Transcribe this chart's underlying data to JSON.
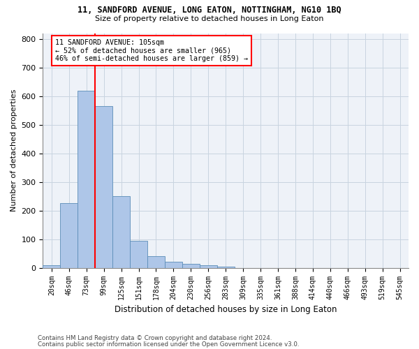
{
  "title_line1": "11, SANDFORD AVENUE, LONG EATON, NOTTINGHAM, NG10 1BQ",
  "title_line2": "Size of property relative to detached houses in Long Eaton",
  "xlabel": "Distribution of detached houses by size in Long Eaton",
  "ylabel": "Number of detached properties",
  "bar_labels": [
    "20sqm",
    "46sqm",
    "73sqm",
    "99sqm",
    "125sqm",
    "151sqm",
    "178sqm",
    "204sqm",
    "230sqm",
    "256sqm",
    "283sqm",
    "309sqm",
    "335sqm",
    "361sqm",
    "388sqm",
    "414sqm",
    "440sqm",
    "466sqm",
    "493sqm",
    "519sqm",
    "545sqm"
  ],
  "bar_values": [
    10,
    225,
    618,
    565,
    250,
    95,
    40,
    20,
    15,
    8,
    5,
    0,
    0,
    0,
    0,
    0,
    0,
    0,
    0,
    0,
    0
  ],
  "bar_color": "#aec6e8",
  "bar_edge_color": "#5b8db8",
  "grid_color": "#c8d4e0",
  "background_color": "#eef2f8",
  "annotation_box_color": "white",
  "annotation_box_edge": "red",
  "annotation_line": "11 SANDFORD AVENUE: 105sqm",
  "annotation_pct1": "← 52% of detached houses are smaller (965)",
  "annotation_pct2": "46% of semi-detached houses are larger (859) →",
  "vline_x_idx": 2.5,
  "vline_color": "red",
  "ylim": [
    0,
    820
  ],
  "yticks": [
    0,
    100,
    200,
    300,
    400,
    500,
    600,
    700,
    800
  ],
  "footer1": "Contains HM Land Registry data © Crown copyright and database right 2024.",
  "footer2": "Contains public sector information licensed under the Open Government Licence v3.0."
}
